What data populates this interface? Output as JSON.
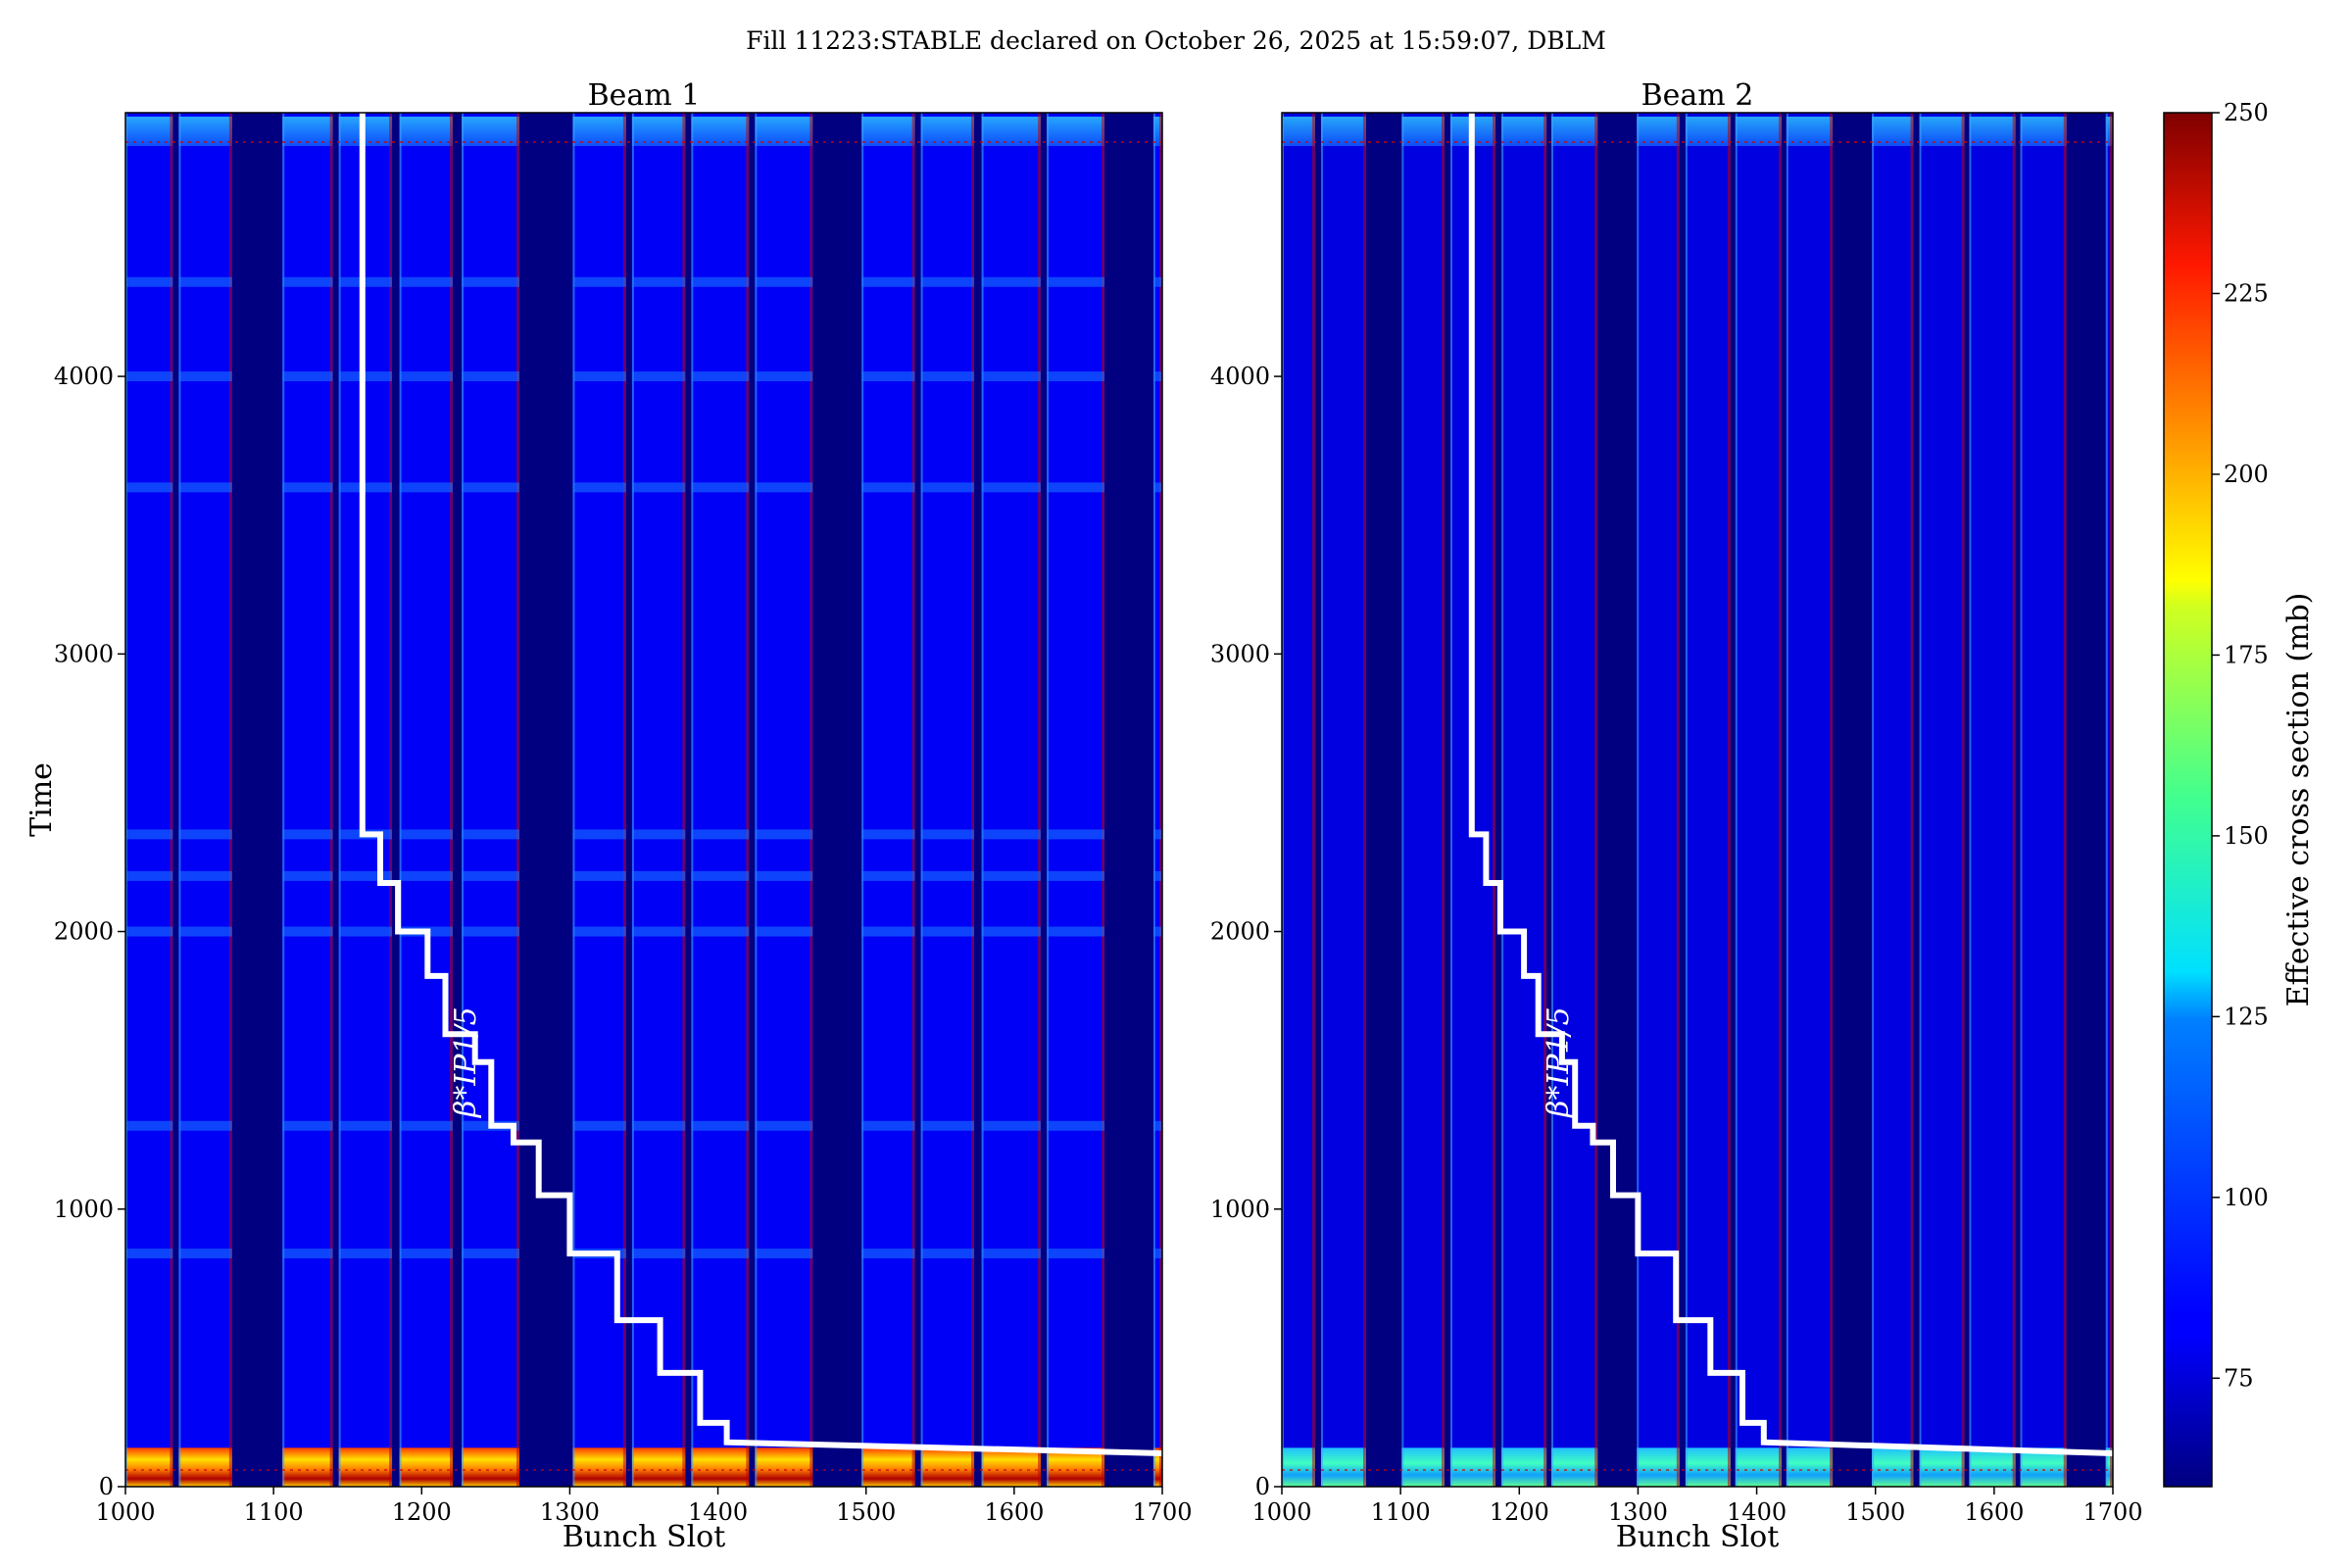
{
  "figure": {
    "suptitle": "Fill 11223:STABLE declared on October 26, 2025 at 15:59:07, DBLM"
  },
  "chart_data": [
    {
      "type": "heatmap",
      "title": "Beam 1",
      "xlabel": "Bunch Slot",
      "ylabel": "Time",
      "xlim": [
        1000,
        1700
      ],
      "ylim": [
        0,
        4950
      ],
      "xticks": [
        1000,
        1100,
        1200,
        1300,
        1400,
        1500,
        1600,
        1700
      ],
      "yticks": [
        0,
        1000,
        2000,
        3000,
        4000
      ],
      "filled_bunch_trains": [
        [
          1000,
          1032
        ],
        [
          1036,
          1072
        ],
        [
          1106,
          1140
        ],
        [
          1144,
          1180
        ],
        [
          1185,
          1221
        ],
        [
          1227,
          1266
        ],
        [
          1302,
          1338
        ],
        [
          1342,
          1378
        ],
        [
          1382,
          1421
        ],
        [
          1425,
          1464
        ],
        [
          1497,
          1533
        ],
        [
          1537,
          1573
        ],
        [
          1578,
          1618
        ],
        [
          1622,
          1661
        ],
        [
          1694,
          1700
        ]
      ],
      "base_level_mb": 82,
      "early_level_mb": 230,
      "early_period_end_time": 140,
      "overlay_label": "β*IP1/5",
      "overlay_steps": [
        {
          "x": 1160,
          "y": 4950
        },
        {
          "x": 1160,
          "y": 2350
        },
        {
          "x": 1172,
          "y": 2350
        },
        {
          "x": 1172,
          "y": 2175
        },
        {
          "x": 1184,
          "y": 2175
        },
        {
          "x": 1184,
          "y": 2000
        },
        {
          "x": 1204,
          "y": 2000
        },
        {
          "x": 1204,
          "y": 1840
        },
        {
          "x": 1216,
          "y": 1840
        },
        {
          "x": 1216,
          "y": 1630
        },
        {
          "x": 1236,
          "y": 1630
        },
        {
          "x": 1236,
          "y": 1530
        },
        {
          "x": 1247,
          "y": 1530
        },
        {
          "x": 1247,
          "y": 1300
        },
        {
          "x": 1262,
          "y": 1300
        },
        {
          "x": 1262,
          "y": 1240
        },
        {
          "x": 1279,
          "y": 1240
        },
        {
          "x": 1279,
          "y": 1050
        },
        {
          "x": 1300,
          "y": 1050
        },
        {
          "x": 1300,
          "y": 840
        },
        {
          "x": 1332,
          "y": 840
        },
        {
          "x": 1332,
          "y": 600
        },
        {
          "x": 1361,
          "y": 600
        },
        {
          "x": 1361,
          "y": 410
        },
        {
          "x": 1388,
          "y": 410
        },
        {
          "x": 1388,
          "y": 230
        },
        {
          "x": 1406,
          "y": 230
        },
        {
          "x": 1406,
          "y": 160
        },
        {
          "x": 1700,
          "y": 120
        }
      ]
    },
    {
      "type": "heatmap",
      "title": "Beam 2",
      "xlabel": "Bunch Slot",
      "ylabel": "",
      "xlim": [
        1000,
        1700
      ],
      "ylim": [
        0,
        4950
      ],
      "xticks": [
        1000,
        1100,
        1200,
        1300,
        1400,
        1500,
        1600,
        1700
      ],
      "yticks": [
        0,
        1000,
        2000,
        3000,
        4000
      ],
      "filled_bunch_trains": [
        [
          1000,
          1028
        ],
        [
          1033,
          1071
        ],
        [
          1101,
          1137
        ],
        [
          1142,
          1180
        ],
        [
          1185,
          1223
        ],
        [
          1227,
          1266
        ],
        [
          1299,
          1335
        ],
        [
          1340,
          1378
        ],
        [
          1382,
          1421
        ],
        [
          1425,
          1464
        ],
        [
          1497,
          1532
        ],
        [
          1537,
          1575
        ],
        [
          1579,
          1618
        ],
        [
          1622,
          1661
        ],
        [
          1694,
          1700
        ]
      ],
      "base_level_mb": 78,
      "early_level_mb": 125,
      "early_period_end_time": 140,
      "overlay_label": "β*IP1/5",
      "overlay_steps": [
        {
          "x": 1160,
          "y": 4950
        },
        {
          "x": 1160,
          "y": 2350
        },
        {
          "x": 1172,
          "y": 2350
        },
        {
          "x": 1172,
          "y": 2175
        },
        {
          "x": 1184,
          "y": 2175
        },
        {
          "x": 1184,
          "y": 2000
        },
        {
          "x": 1204,
          "y": 2000
        },
        {
          "x": 1204,
          "y": 1840
        },
        {
          "x": 1216,
          "y": 1840
        },
        {
          "x": 1216,
          "y": 1630
        },
        {
          "x": 1236,
          "y": 1630
        },
        {
          "x": 1236,
          "y": 1530
        },
        {
          "x": 1247,
          "y": 1530
        },
        {
          "x": 1247,
          "y": 1300
        },
        {
          "x": 1262,
          "y": 1300
        },
        {
          "x": 1262,
          "y": 1240
        },
        {
          "x": 1279,
          "y": 1240
        },
        {
          "x": 1279,
          "y": 1050
        },
        {
          "x": 1300,
          "y": 1050
        },
        {
          "x": 1300,
          "y": 840
        },
        {
          "x": 1332,
          "y": 840
        },
        {
          "x": 1332,
          "y": 600
        },
        {
          "x": 1361,
          "y": 600
        },
        {
          "x": 1361,
          "y": 410
        },
        {
          "x": 1388,
          "y": 410
        },
        {
          "x": 1388,
          "y": 230
        },
        {
          "x": 1406,
          "y": 230
        },
        {
          "x": 1406,
          "y": 160
        },
        {
          "x": 1700,
          "y": 120
        }
      ]
    }
  ],
  "colorbar": {
    "label": "Effective cross section (mb)",
    "range": [
      60,
      250
    ],
    "ticks": [
      75,
      100,
      125,
      150,
      175,
      200,
      225,
      250
    ],
    "colormap": "jet"
  }
}
